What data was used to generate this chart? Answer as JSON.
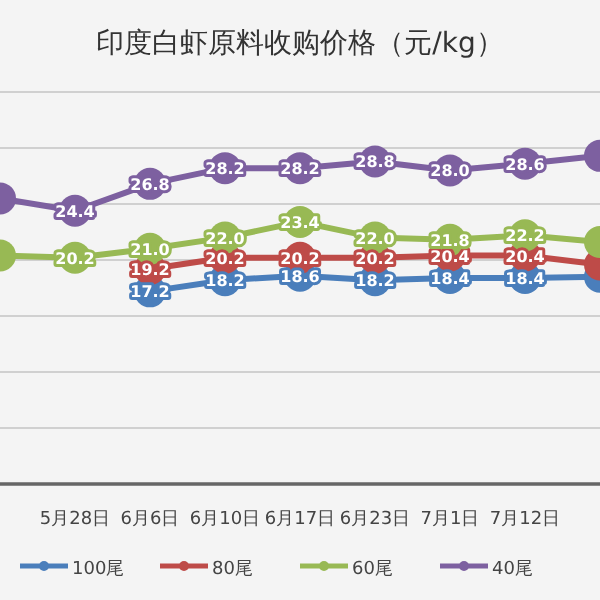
{
  "chart_data": {
    "type": "line",
    "title": "印度白虾原料收购价格（元/kg）",
    "categories": [
      null,
      "5月28日",
      "6月6日",
      "6月10日",
      "6月17日",
      "6月23日",
      "7月1日",
      "7月12日",
      null
    ],
    "series": [
      {
        "name": "100尾",
        "color": "#4a7ebb",
        "values": [
          null,
          null,
          17.2,
          18.2,
          18.6,
          18.2,
          18.4,
          18.4,
          18.5
        ],
        "value_labels": [
          null,
          null,
          "17.2",
          "18.2",
          "18.6",
          "18.2",
          "18.4",
          "18.4",
          null
        ]
      },
      {
        "name": "80尾",
        "color": "#be4b48",
        "values": [
          null,
          null,
          19.2,
          20.2,
          20.2,
          20.2,
          20.4,
          20.4,
          19.6
        ],
        "value_labels": [
          null,
          null,
          "19.2",
          "20.2",
          "20.2",
          "20.2",
          "20.4",
          "20.4",
          null
        ]
      },
      {
        "name": "60尾",
        "color": "#98b954",
        "values": [
          20.4,
          20.2,
          21.0,
          22.0,
          23.4,
          22.0,
          21.8,
          22.2,
          21.6
        ],
        "value_labels": [
          null,
          "20.2",
          "21.0",
          "22.0",
          "23.4",
          "22.0",
          "21.8",
          "22.2",
          null
        ]
      },
      {
        "name": "40尾",
        "color": "#7d60a0",
        "values": [
          25.5,
          24.4,
          26.8,
          28.2,
          28.2,
          28.8,
          28.0,
          28.6,
          29.3
        ],
        "value_labels": [
          null,
          "24.4",
          "26.8",
          "28.2",
          "28.2",
          "28.8",
          "28.0",
          "28.6",
          null
        ]
      }
    ],
    "ylim": [
      0,
      35
    ],
    "yticks": [
      {
        "value": 0,
        "label": null
      },
      {
        "value": 5,
        "label": null
      },
      {
        "value": 10,
        "label": null
      },
      {
        "value": 15,
        "label": null
      },
      {
        "value": 20,
        "label": null
      },
      {
        "value": 25,
        "label": null
      },
      {
        "value": 30,
        "label": null
      },
      {
        "value": 35,
        "label": null
      }
    ],
    "tick_labels": "x",
    "grid": "y",
    "legend": "bottom",
    "marker": "circle",
    "line_style": "solid"
  }
}
